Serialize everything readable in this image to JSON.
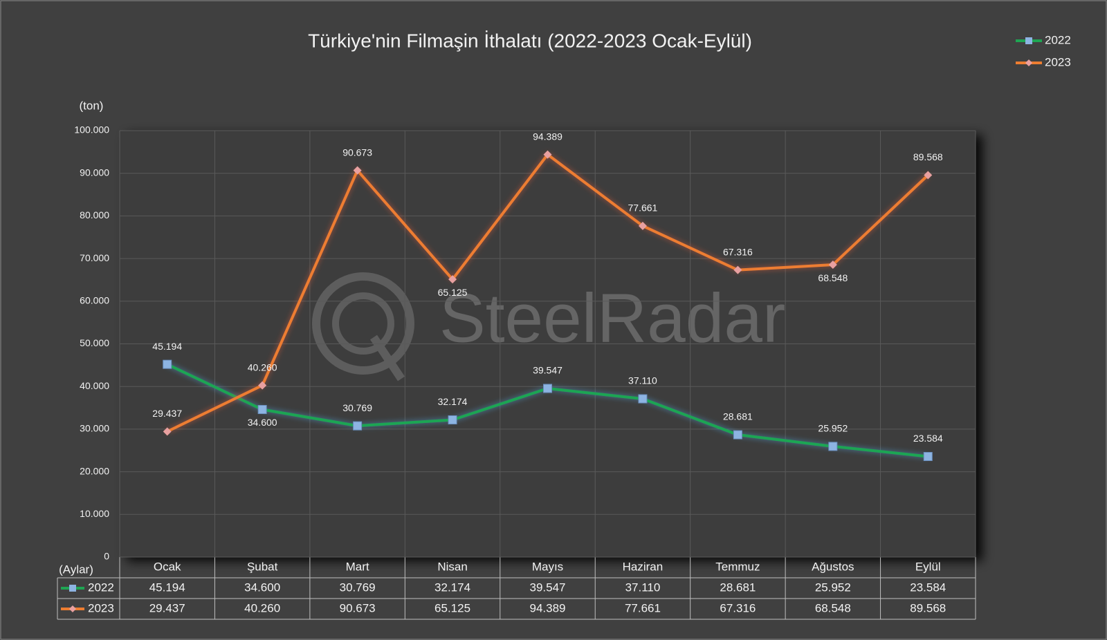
{
  "chart_data": {
    "type": "line",
    "title": "Türkiye'nin Filmaşin İthalatı (2022-2023 Ocak-Eylül)",
    "y_label": "(ton)",
    "x_label": "(Aylar)",
    "watermark": "SteelRadar",
    "categories": [
      "Ocak",
      "Şubat",
      "Mart",
      "Nisan",
      "Mayıs",
      "Haziran",
      "Temmuz",
      "Ağustos",
      "Eylül"
    ],
    "series": [
      {
        "name": "2022",
        "color": "#1fa553",
        "marker_color": "#8db4e2",
        "marker": "square",
        "values": [
          45194,
          34600,
          30769,
          32174,
          39547,
          37110,
          28681,
          25952,
          23584
        ],
        "value_labels": [
          "45.194",
          "34.600",
          "30.769",
          "32.174",
          "39.547",
          "37.110",
          "28.681",
          "25.952",
          "23.584"
        ]
      },
      {
        "name": "2023",
        "color": "#ed7d31",
        "marker_color": "#e8a0a0",
        "marker": "diamond",
        "values": [
          29437,
          40260,
          90673,
          65125,
          94389,
          77661,
          67316,
          68548,
          89568
        ],
        "value_labels": [
          "29.437",
          "40.260",
          "90.673",
          "65.125",
          "94.389",
          "77.661",
          "67.316",
          "68.548",
          "89.568"
        ]
      }
    ],
    "ylim": [
      0,
      100000
    ],
    "yticks": [
      0,
      {
        "value": 10000,
        "label": "10.000"
      },
      {
        "value": 20000,
        "label": "20.000"
      },
      {
        "value": 30000,
        "label": "30.000"
      },
      {
        "value": 40000,
        "label": "40.000"
      },
      {
        "value": 50000,
        "label": "50.000"
      },
      {
        "value": 60000,
        "label": "60.000"
      },
      {
        "value": 70000,
        "label": "70.000"
      },
      {
        "value": 80000,
        "label": "80.000"
      },
      {
        "value": 90000,
        "label": "90.000"
      },
      {
        "value": 100000,
        "label": "100.000"
      }
    ],
    "grid": true,
    "legend": "top-right"
  }
}
